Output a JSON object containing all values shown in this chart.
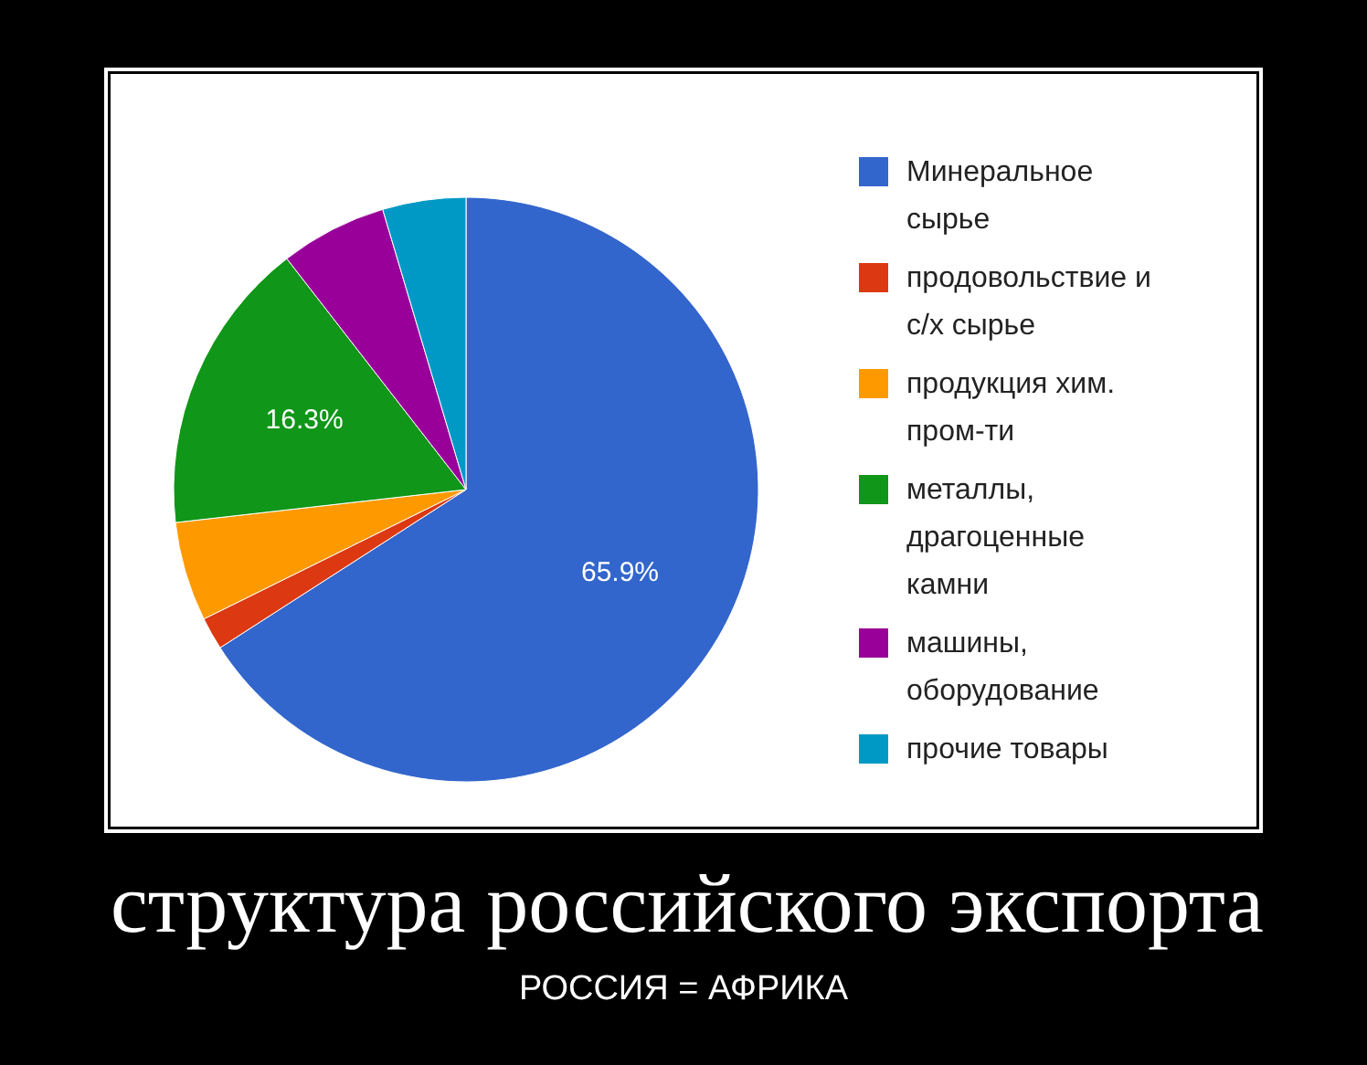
{
  "chart_data": {
    "type": "pie",
    "title": "структура российского экспорта",
    "subtitle": "РОССИЯ = АФРИКА",
    "categories": [
      "Минеральное сырье",
      "продовольствие и с/х сырье",
      "продукция хим. пром-ти",
      "металлы, драгоценные камни",
      "машины, оборудование",
      "прочие товары"
    ],
    "values": [
      65.9,
      1.8,
      5.5,
      16.3,
      5.9,
      4.6
    ],
    "colors": [
      "#3366cc",
      "#dc3912",
      "#ff9900",
      "#109618",
      "#990099",
      "#0099c6"
    ],
    "value_labels": [
      "65.9%",
      null,
      null,
      "16.3%",
      null,
      null
    ],
    "legend": "right"
  }
}
